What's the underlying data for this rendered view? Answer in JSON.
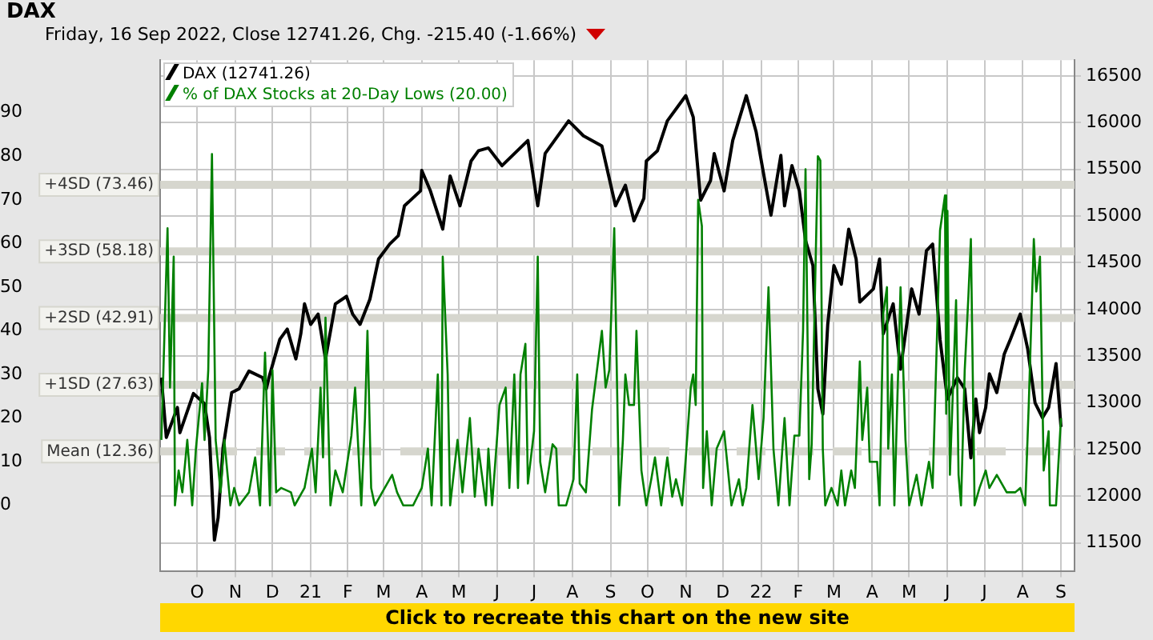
{
  "chart_data": {
    "type": "line",
    "title": "DAX",
    "subtitle": "Friday, 16 Sep 2022, Close 12741.26, Chg. -215.40 (-1.66%)",
    "annotations": [
      "Click to recreate this chart on the new site"
    ],
    "legend": "top left",
    "grid": true,
    "marker": "none",
    "line_style": "solid",
    "xlim": [
      "2020-09-16",
      "2022-09-27"
    ],
    "xticks": [
      {
        "value": "2020-10-16",
        "label": "O"
      },
      {
        "value": "2020-11-16",
        "label": "N"
      },
      {
        "value": "2020-12-16",
        "label": "D"
      },
      {
        "value": "2021-01-16",
        "label": "21"
      },
      {
        "value": "2021-02-15",
        "label": "F"
      },
      {
        "value": "2021-03-16",
        "label": "M"
      },
      {
        "value": "2021-04-16",
        "label": "A"
      },
      {
        "value": "2021-05-16",
        "label": "M"
      },
      {
        "value": "2021-06-16",
        "label": "J"
      },
      {
        "value": "2021-07-16",
        "label": "J"
      },
      {
        "value": "2021-08-16",
        "label": "A"
      },
      {
        "value": "2021-09-16",
        "label": "S"
      },
      {
        "value": "2021-10-16",
        "label": "O"
      },
      {
        "value": "2021-11-16",
        "label": "N"
      },
      {
        "value": "2021-12-16",
        "label": "D"
      },
      {
        "value": "2022-01-16",
        "label": "22"
      },
      {
        "value": "2022-02-15",
        "label": "F"
      },
      {
        "value": "2022-03-16",
        "label": "M"
      },
      {
        "value": "2022-04-16",
        "label": "A"
      },
      {
        "value": "2022-05-16",
        "label": "M"
      },
      {
        "value": "2022-06-16",
        "label": "J"
      },
      {
        "value": "2022-07-16",
        "label": "J"
      },
      {
        "value": "2022-08-16",
        "label": "A"
      },
      {
        "value": "2022-09-16",
        "label": "S"
      }
    ],
    "ylim": [
      -15,
      102
    ],
    "yticks": [
      0,
      10,
      20,
      30,
      40,
      50,
      60,
      70,
      80,
      90
    ],
    "y2lim": [
      11200,
      16670
    ],
    "y2ticks": [
      11500,
      12000,
      12500,
      13000,
      13500,
      14000,
      14500,
      15000,
      15500,
      16000,
      16500
    ],
    "ref_lines": [
      {
        "axis": "y",
        "value": 73.46,
        "label": "+4SD (73.46)",
        "color": "#d6d6ce",
        "line_style": "solid"
      },
      {
        "axis": "y",
        "value": 58.18,
        "label": "+3SD (58.18)",
        "color": "#d6d6ce",
        "line_style": "solid"
      },
      {
        "axis": "y",
        "value": 42.91,
        "label": "+2SD (42.91)",
        "color": "#d6d6ce",
        "line_style": "solid"
      },
      {
        "axis": "y",
        "value": 27.63,
        "label": "+1SD (27.63)",
        "color": "#d6d6ce",
        "line_style": "solid"
      },
      {
        "axis": "y",
        "value": 12.36,
        "label": "Mean (12.36)",
        "color": "#d6d6ce",
        "line_style": "dashed"
      }
    ],
    "series": [
      {
        "name": "% of DAX Stocks at 20-Day Lows (20.00)",
        "color": "#008000",
        "axis": "y",
        "x": [
          "2020-09-17",
          "2020-09-22",
          "2020-09-24",
          "2020-09-27",
          "2020-09-28",
          "2020-10-01",
          "2020-10-04",
          "2020-10-08",
          "2020-10-12",
          "2020-10-15",
          "2020-10-20",
          "2020-10-22",
          "2020-10-25",
          "2020-10-28",
          "2020-10-31",
          "2020-11-04",
          "2020-11-07",
          "2020-11-12",
          "2020-11-15",
          "2020-11-19",
          "2020-11-27",
          "2020-12-02",
          "2020-12-06",
          "2020-12-10",
          "2020-12-14",
          "2020-12-16",
          "2020-12-19",
          "2020-12-23",
          "2020-12-31",
          "2021-01-03",
          "2021-01-11",
          "2021-01-17",
          "2021-01-20",
          "2021-01-24",
          "2021-01-26",
          "2021-01-28",
          "2021-02-01",
          "2021-02-05",
          "2021-02-11",
          "2021-02-18",
          "2021-02-21",
          "2021-02-26",
          "2021-03-01",
          "2021-03-03",
          "2021-03-06",
          "2021-03-09",
          "2021-03-17",
          "2021-03-23",
          "2021-03-27",
          "2021-04-01",
          "2021-04-09",
          "2021-04-16",
          "2021-04-21",
          "2021-04-24",
          "2021-04-29",
          "2021-05-02",
          "2021-05-03",
          "2021-05-07",
          "2021-05-09",
          "2021-05-15",
          "2021-05-19",
          "2021-05-25",
          "2021-05-29",
          "2021-06-01",
          "2021-06-07",
          "2021-06-09",
          "2021-06-12",
          "2021-06-18",
          "2021-06-23",
          "2021-06-26",
          "2021-06-30",
          "2021-07-03",
          "2021-07-05",
          "2021-07-09",
          "2021-07-11",
          "2021-07-16",
          "2021-07-19",
          "2021-07-21",
          "2021-07-25",
          "2021-07-31",
          "2021-08-03",
          "2021-08-05",
          "2021-08-11",
          "2021-08-17",
          "2021-08-20",
          "2021-08-22",
          "2021-08-27",
          "2021-09-01",
          "2021-09-05",
          "2021-09-09",
          "2021-09-12",
          "2021-09-15",
          "2021-09-19",
          "2021-09-23",
          "2021-09-26",
          "2021-09-28",
          "2021-10-01",
          "2021-10-05",
          "2021-10-07",
          "2021-10-11",
          "2021-10-15",
          "2021-10-19",
          "2021-10-22",
          "2021-10-27",
          "2021-11-01",
          "2021-11-05",
          "2021-11-08",
          "2021-11-13",
          "2021-11-16",
          "2021-11-20",
          "2021-11-22",
          "2021-11-24",
          "2021-11-26",
          "2021-11-29",
          "2021-11-30",
          "2021-12-03",
          "2021-12-07",
          "2021-12-11",
          "2021-12-17",
          "2021-12-23",
          "2021-12-29",
          "2022-01-01",
          "2022-01-04",
          "2022-01-09",
          "2022-01-14",
          "2022-01-18",
          "2022-01-22",
          "2022-01-26",
          "2022-01-30",
          "2022-02-04",
          "2022-02-08",
          "2022-02-12",
          "2022-02-16",
          "2022-02-19",
          "2022-02-21",
          "2022-02-23",
          "2022-02-24",
          "2022-02-26",
          "2022-02-28",
          "2022-03-03",
          "2022-03-05",
          "2022-03-07",
          "2022-03-09",
          "2022-03-14",
          "2022-03-19",
          "2022-03-22",
          "2022-03-25",
          "2022-03-30",
          "2022-04-02",
          "2022-04-06",
          "2022-04-08",
          "2022-04-12",
          "2022-04-14",
          "2022-04-20",
          "2022-04-22",
          "2022-04-25",
          "2022-04-28",
          "2022-04-29",
          "2022-05-02",
          "2022-05-04",
          "2022-05-09",
          "2022-05-13",
          "2022-05-16",
          "2022-05-22",
          "2022-05-26",
          "2022-06-01",
          "2022-06-04",
          "2022-06-10",
          "2022-06-14",
          "2022-06-15",
          "2022-06-16",
          "2022-06-18",
          "2022-06-23",
          "2022-06-25",
          "2022-06-27",
          "2022-06-30",
          "2022-07-03",
          "2022-07-05",
          "2022-07-08",
          "2022-07-12",
          "2022-07-17",
          "2022-07-20",
          "2022-07-26",
          "2022-08-03",
          "2022-08-10",
          "2022-08-14",
          "2022-08-18",
          "2022-08-21",
          "2022-08-25",
          "2022-08-27",
          "2022-08-30",
          "2022-09-02",
          "2022-09-06",
          "2022-09-07",
          "2022-09-12",
          "2022-09-16"
        ],
        "values": [
          15,
          63.5,
          27,
          57,
          0,
          8,
          3,
          15,
          0,
          13,
          28,
          15,
          31,
          80.5,
          15,
          3,
          15,
          0,
          4,
          0,
          3,
          11,
          0,
          35,
          0,
          31,
          3,
          4,
          3,
          0,
          4,
          13,
          3,
          27,
          11,
          43,
          0,
          8,
          3,
          16,
          27,
          0,
          20,
          40,
          4,
          0,
          4,
          7,
          3,
          0,
          0,
          4,
          13,
          0,
          30,
          0,
          57,
          30,
          0,
          15,
          3,
          20,
          2,
          13,
          0,
          13,
          0,
          23,
          27,
          4,
          30,
          4,
          30,
          37,
          5,
          17,
          57,
          10,
          3,
          14,
          13,
          0,
          0,
          6,
          30,
          5,
          3,
          22,
          31,
          40,
          27,
          31,
          63.5,
          0,
          15,
          30,
          23,
          23,
          40,
          8,
          0,
          6,
          11,
          0,
          11,
          2,
          6,
          0,
          11,
          27,
          30,
          23,
          70,
          64,
          4,
          17,
          0,
          13,
          17,
          0,
          6,
          0,
          4,
          23,
          6,
          20,
          50,
          13,
          0,
          20,
          0,
          16,
          16,
          40,
          77,
          30,
          6,
          14,
          40,
          80,
          79,
          13,
          0,
          4,
          0,
          8,
          0,
          8,
          4,
          33,
          15,
          27,
          10,
          10,
          0,
          44,
          50,
          13,
          30,
          0,
          50,
          15,
          0,
          7,
          0,
          10,
          4,
          63,
          71,
          21,
          67.5,
          7,
          47,
          7,
          0,
          31,
          48,
          61,
          0,
          4,
          8,
          4,
          7,
          3,
          3,
          4,
          0,
          24,
          61,
          49,
          57,
          8,
          17,
          0,
          0,
          20
        ]
      },
      {
        "name": "DAX (12741.26)",
        "color": "#000000",
        "axis": "y2",
        "x": [
          "2020-09-17",
          "2020-09-21",
          "2020-09-30",
          "2020-10-02",
          "2020-10-13",
          "2020-10-22",
          "2020-10-26",
          "2020-10-30",
          "2020-11-02",
          "2020-11-06",
          "2020-11-13",
          "2020-11-19",
          "2020-11-27",
          "2020-12-08",
          "2020-12-11",
          "2020-12-14",
          "2020-12-22",
          "2020-12-28",
          "2021-01-04",
          "2021-01-08",
          "2021-01-11",
          "2021-01-16",
          "2021-01-22",
          "2021-01-28",
          "2021-02-05",
          "2021-02-14",
          "2021-02-19",
          "2021-02-25",
          "2021-03-05",
          "2021-03-12",
          "2021-03-21",
          "2021-03-28",
          "2021-04-02",
          "2021-04-15",
          "2021-04-16",
          "2021-04-23",
          "2021-05-03",
          "2021-05-09",
          "2021-05-17",
          "2021-05-26",
          "2021-06-01",
          "2021-06-09",
          "2021-06-20",
          "2021-07-11",
          "2021-07-19",
          "2021-07-25",
          "2021-08-13",
          "2021-08-25",
          "2021-09-09",
          "2021-09-20",
          "2021-09-28",
          "2021-10-05",
          "2021-10-13",
          "2021-10-15",
          "2021-10-24",
          "2021-11-01",
          "2021-11-16",
          "2021-11-22",
          "2021-11-28",
          "2021-12-06",
          "2021-12-09",
          "2021-12-17",
          "2021-12-24",
          "2022-01-04",
          "2022-01-12",
          "2022-01-24",
          "2022-02-01",
          "2022-02-04",
          "2022-02-10",
          "2022-02-16",
          "2022-02-21",
          "2022-02-27",
          "2022-03-03",
          "2022-03-07",
          "2022-03-11",
          "2022-03-16",
          "2022-03-22",
          "2022-03-28",
          "2022-04-03",
          "2022-04-06",
          "2022-04-17",
          "2022-04-22",
          "2022-04-25",
          "2022-05-03",
          "2022-05-09",
          "2022-05-18",
          "2022-05-24",
          "2022-05-30",
          "2022-06-04",
          "2022-06-10",
          "2022-06-16",
          "2022-06-24",
          "2022-06-30",
          "2022-07-02",
          "2022-07-05",
          "2022-07-09",
          "2022-07-12",
          "2022-07-17",
          "2022-07-20",
          "2022-07-26",
          "2022-08-01",
          "2022-08-06",
          "2022-08-14",
          "2022-08-20",
          "2022-08-26",
          "2022-09-01",
          "2022-09-06",
          "2022-09-12",
          "2022-09-16"
        ],
        "values": [
          13270,
          12630,
          12950,
          12680,
          13100,
          12990,
          12630,
          11530,
          11770,
          12520,
          13110,
          13150,
          13340,
          13270,
          13150,
          13310,
          13680,
          13790,
          13470,
          13740,
          14060,
          13840,
          13950,
          13470,
          14060,
          14140,
          13950,
          13840,
          14110,
          14540,
          14700,
          14790,
          15110,
          15270,
          15490,
          15270,
          14860,
          15430,
          15110,
          15590,
          15700,
          15730,
          15540,
          15810,
          15110,
          15670,
          16020,
          15860,
          15750,
          15110,
          15330,
          14950,
          15190,
          15590,
          15700,
          16020,
          16290,
          16060,
          15170,
          15380,
          15670,
          15270,
          15810,
          16290,
          15900,
          15010,
          15650,
          15110,
          15540,
          15270,
          14740,
          14470,
          13150,
          12880,
          13840,
          14470,
          14270,
          14860,
          14540,
          14080,
          14220,
          14540,
          13740,
          14060,
          13360,
          14220,
          13950,
          14630,
          14700,
          13680,
          13040,
          13270,
          13150,
          12840,
          12410,
          13040,
          12680,
          12950,
          13310,
          13110,
          13520,
          13680,
          13950,
          13580,
          13000,
          12840,
          12950,
          13420,
          12741.26
        ]
      }
    ]
  }
}
